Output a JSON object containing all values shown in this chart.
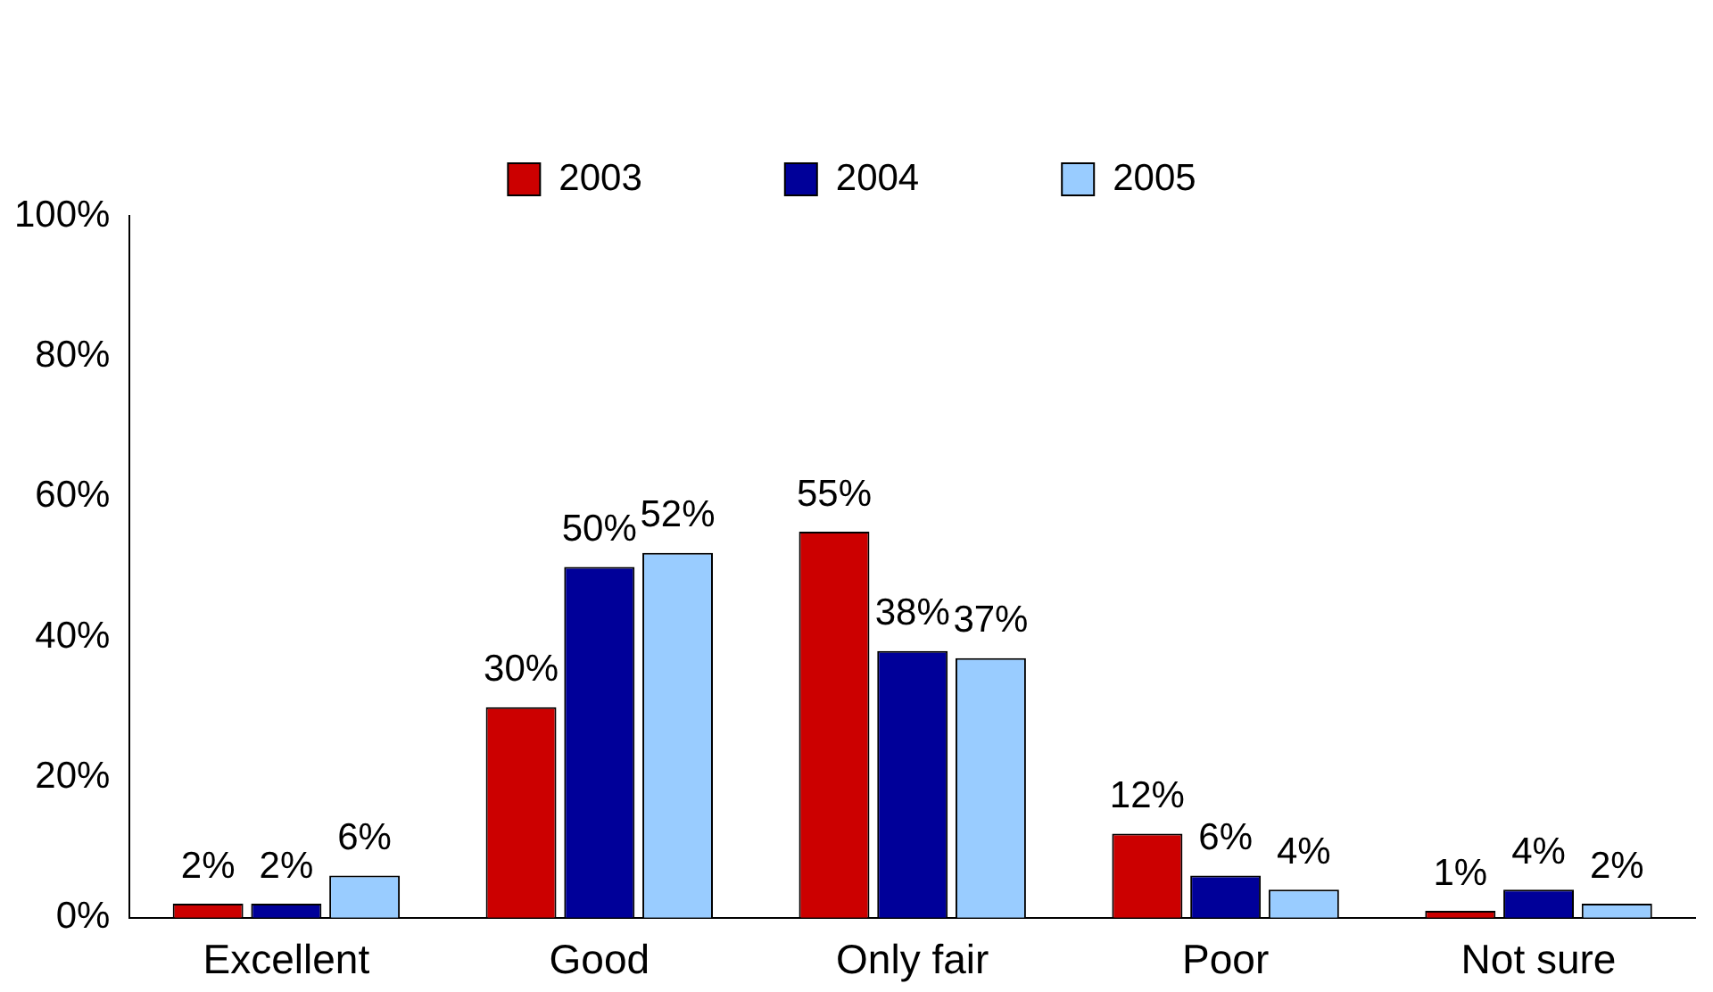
{
  "chart_data": {
    "type": "bar",
    "categories": [
      "Excellent",
      "Good",
      "Only fair",
      "Poor",
      "Not sure"
    ],
    "series": [
      {
        "name": "2003",
        "color": "#cc0000",
        "values": [
          2,
          30,
          55,
          12,
          1
        ],
        "value_labels": [
          "2%",
          "30%",
          "55%",
          "12%",
          "1%"
        ]
      },
      {
        "name": "2004",
        "color": "#000099",
        "values": [
          2,
          50,
          38,
          6,
          4
        ],
        "value_labels": [
          "2%",
          "50%",
          "38%",
          "6%",
          "4%"
        ]
      },
      {
        "name": "2005",
        "color": "#99ccff",
        "values": [
          6,
          52,
          37,
          4,
          2
        ],
        "value_labels": [
          "6%",
          "52%",
          "37%",
          "4%",
          "2%"
        ]
      }
    ],
    "ylim": [
      0,
      100
    ],
    "yticks": [
      {
        "value": 0,
        "label": "0%"
      },
      {
        "value": 20,
        "label": "20%"
      },
      {
        "value": 40,
        "label": "40%"
      },
      {
        "value": 60,
        "label": "60%"
      },
      {
        "value": 80,
        "label": "80%"
      },
      {
        "value": 100,
        "label": "100%"
      }
    ],
    "grid": false,
    "legend": "top"
  }
}
